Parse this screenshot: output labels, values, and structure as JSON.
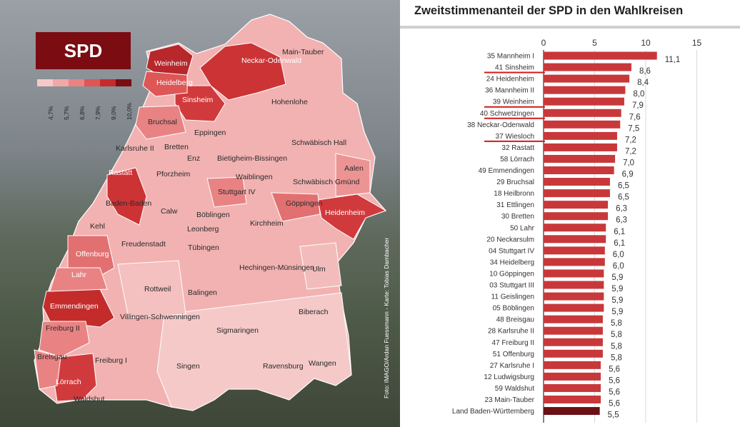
{
  "map": {
    "party": "SPD",
    "legend": {
      "ticks": [
        "4,7%",
        "5,7%",
        "6,8%",
        "7,9%",
        "9,0%",
        "10,0%"
      ],
      "colors": [
        "#f6c9c9",
        "#f0a8a8",
        "#e98383",
        "#de5656",
        "#c42c2c",
        "#7a0c12"
      ]
    },
    "credit": "Foto: IMAGO/Ardan Fuessmann - Karte: Tobias Dambacher",
    "regions": [
      "Main-Tauber",
      "Weinheim",
      "Neckar-Odenwald",
      "Heidelberg",
      "Sinsheim",
      "Hohenlohe",
      "Bruchsal",
      "Eppingen",
      "Schwäbisch Hall",
      "Karlsruhe II",
      "Bretten",
      "Enz",
      "Bietigheim-Bissingen",
      "Rastatt",
      "Pforzheim",
      "Waiblingen",
      "Schwäbisch Gmünd",
      "Aalen",
      "Stuttgart IV",
      "Baden-Baden",
      "Calw",
      "Göppingen",
      "Heidenheim",
      "Böblingen",
      "Kehl",
      "Leonberg",
      "Kirchheim",
      "Freudenstadt",
      "Tübingen",
      "Offenburg",
      "Hechingen-Münsingen",
      "Lahr",
      "Ulm",
      "Rottweil",
      "Balingen",
      "Emmendingen",
      "Villingen-Schwenningen",
      "Biberach",
      "Freiburg II",
      "Sigmaringen",
      "Breisgau",
      "Freiburg I",
      "Singen",
      "Ravensburg",
      "Wangen",
      "Lörrach",
      "Waldshut"
    ]
  },
  "chart_data": {
    "type": "bar",
    "orientation": "horizontal",
    "title": "Zweitstimmenanteil der SPD in den Wahlkreisen",
    "xlim": [
      0,
      18
    ],
    "xticks": [
      "0",
      "5",
      "10",
      "15"
    ],
    "categories": [
      "35 Mannheim I",
      "41 Sinsheim",
      "24 Heidenheim",
      "36 Mannheim II",
      "39 Weinheim",
      "40 Schwetzingen",
      "38 Neckar-Odenwald",
      "37 Wiesloch",
      "32 Rastatt",
      "58 Lörrach",
      "49 Emmendingen",
      "29 Bruchsal",
      "18 Heilbronn",
      "31 Ettlingen",
      "30 Bretten",
      "50 Lahr",
      "20 Neckarsulm",
      "04 Stuttgart IV",
      "34 Heidelberg",
      "10 Göppingen",
      "03 Stuttgart III",
      "11 Geislingen",
      "05 Böblingen",
      "48 Breisgau",
      "28 Karlsruhe II",
      "47 Freiburg II",
      "51 Offenburg",
      "27 Karlsruhe I",
      "12 Ludwigsburg",
      "59 Waldshut",
      "23 Main-Tauber",
      "Land Baden-Württemberg"
    ],
    "values": [
      11.1,
      8.6,
      8.4,
      8.0,
      7.9,
      7.6,
      7.5,
      7.2,
      7.2,
      7.0,
      6.9,
      6.5,
      6.5,
      6.3,
      6.3,
      6.1,
      6.1,
      6.0,
      6.0,
      5.9,
      5.9,
      5.9,
      5.9,
      5.8,
      5.8,
      5.8,
      5.8,
      5.6,
      5.6,
      5.6,
      5.6,
      5.5
    ],
    "value_labels": [
      "11,1",
      "8,6",
      "8,4",
      "8,0",
      "7,9",
      "7,6",
      "7,5",
      "7,2",
      "7,2",
      "7,0",
      "6,9",
      "6,5",
      "6,5",
      "6,3",
      "6,3",
      "6,1",
      "6,1",
      "6,0",
      "6,0",
      "5,9",
      "5,9",
      "5,9",
      "5,9",
      "5,8",
      "5,8",
      "5,8",
      "5,8",
      "5,6",
      "5,6",
      "5,6",
      "5,6",
      "5,5"
    ],
    "underlined": [
      "41 Sinsheim",
      "39 Weinheim",
      "40 Schwetzingen",
      "37 Wiesloch"
    ],
    "highlighted": "Land Baden-Württemberg",
    "bar_color": "#c8383a",
    "highlight_color": "#6b1014",
    "underline_color": "#d11a1a"
  }
}
